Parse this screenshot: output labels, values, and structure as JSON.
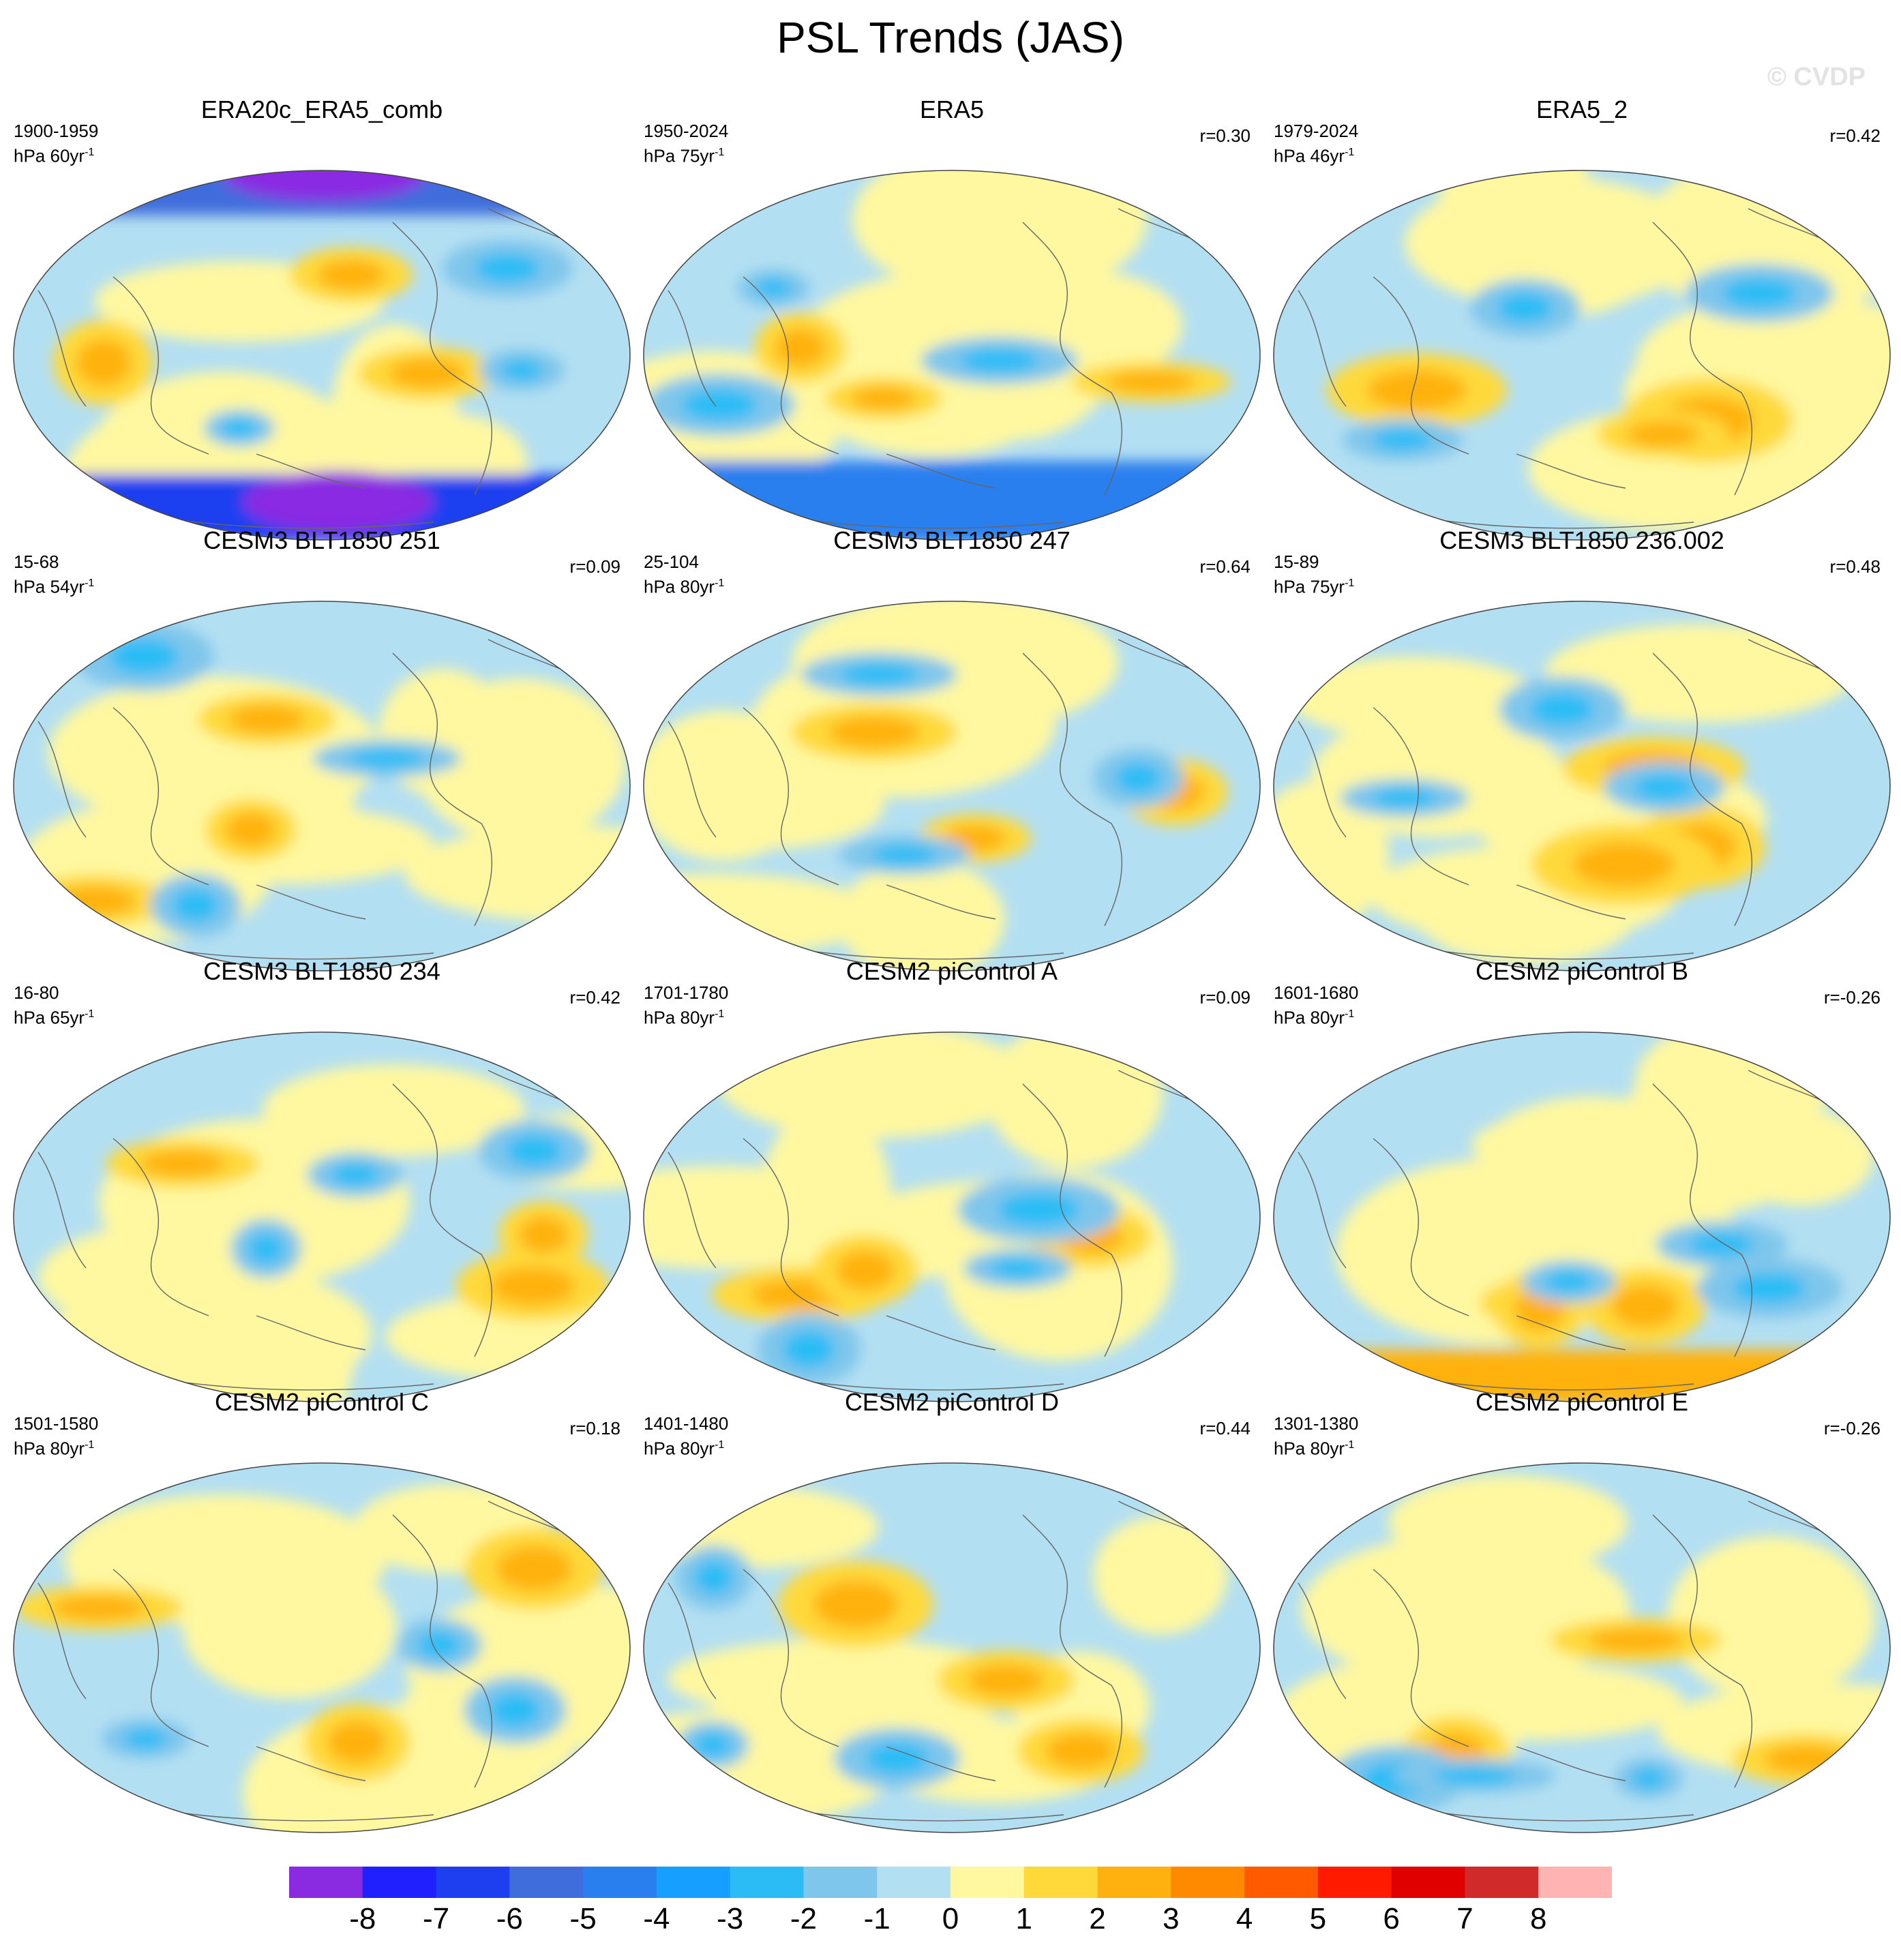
{
  "title": "PSL Trends (JAS)",
  "watermark": "© CVDP",
  "chart_data": {
    "type": "heatmap",
    "projection": "Robinson / Winkel-type global map (Pacific-centered)",
    "variable": "PSL trend",
    "season": "JAS",
    "units_label": "hPa",
    "legend_position": "bottom",
    "colorbar": {
      "levels": [
        -8,
        -7,
        -6,
        -5,
        -4,
        -3,
        -2,
        -1,
        0,
        1,
        2,
        3,
        4,
        5,
        6,
        7,
        8
      ],
      "tick_labels": [
        "-8",
        "-7",
        "-6",
        "-5",
        "-4",
        "-3",
        "-2",
        "-1",
        "0",
        "1",
        "2",
        "3",
        "4",
        "5",
        "6",
        "7",
        "8"
      ],
      "colors": [
        "#8a2be2",
        "#2020ff",
        "#1e3ff0",
        "#3f6ddc",
        "#2a7fef",
        "#169fff",
        "#2cbcf5",
        "#7fc6ec",
        "#b3dff2",
        "#fff8a0",
        "#ffd93a",
        "#ffb20f",
        "#ff8a00",
        "#ff5a00",
        "#ff1a00",
        "#e00000",
        "#d02a2a",
        "#ffb3b3"
      ]
    },
    "panels": [
      {
        "title": "ERA20c_ERA5_comb",
        "period": "1900-1959",
        "trend_label": "hPa 60yr",
        "r": ""
      },
      {
        "title": "ERA5",
        "period": "1950-2024",
        "trend_label": "hPa 75yr",
        "r": "r=0.30"
      },
      {
        "title": "ERA5_2",
        "period": "1979-2024",
        "trend_label": "hPa 46yr",
        "r": "r=0.42"
      },
      {
        "title": "CESM3 BLT1850 251",
        "period": "15-68",
        "trend_label": "hPa 54yr",
        "r": "r=0.09"
      },
      {
        "title": "CESM3 BLT1850 247",
        "period": "25-104",
        "trend_label": "hPa 80yr",
        "r": "r=0.64"
      },
      {
        "title": "CESM3 BLT1850 236.002",
        "period": "15-89",
        "trend_label": "hPa 75yr",
        "r": "r=0.48"
      },
      {
        "title": "CESM3 BLT1850 234",
        "period": "16-80",
        "trend_label": "hPa 65yr",
        "r": "r=0.42"
      },
      {
        "title": "CESM2 piControl A",
        "period": "1701-1780",
        "trend_label": "hPa 80yr",
        "r": "r=0.09"
      },
      {
        "title": "CESM2 piControl B",
        "period": "1601-1680",
        "trend_label": "hPa 80yr",
        "r": "r=-0.26"
      },
      {
        "title": "CESM2 piControl C",
        "period": "1501-1580",
        "trend_label": "hPa 80yr",
        "r": "r=0.18"
      },
      {
        "title": "CESM2 piControl D",
        "period": "1401-1480",
        "trend_label": "hPa 80yr",
        "r": "r=0.44"
      },
      {
        "title": "CESM2 piControl E",
        "period": "1301-1380",
        "trend_label": "hPa 80yr",
        "r": "r=-0.26"
      }
    ]
  }
}
